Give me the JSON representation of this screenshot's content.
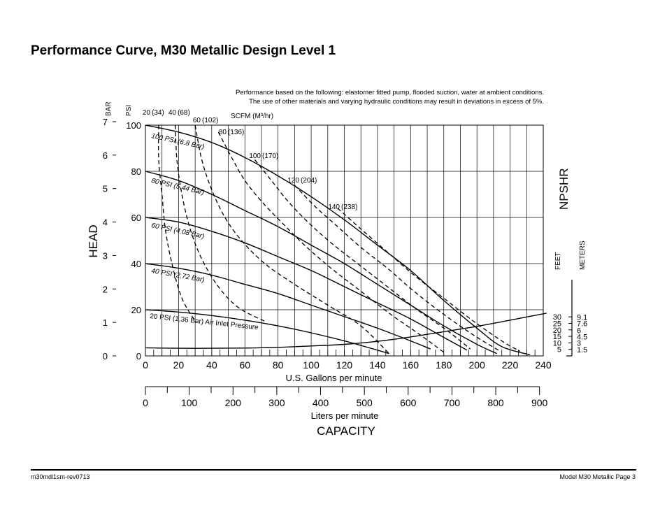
{
  "page": {
    "title": "Performance Curve, M30 Metallic Design Level 1",
    "note_line1": "Performance based on the following: elastomer fitted pump, flooded suction, water at ambient conditions.",
    "note_line2": "The use of other materials and varying hydraulic conditions may result in deviations in excess of 5%.",
    "footer_left": "m30mdl1sm-rev0713",
    "footer_right": "Model M30 Metallic Page 3"
  },
  "chart_data": {
    "type": "line",
    "x_label": "U.S. Gallons per minute",
    "x_ticks": [
      0,
      20,
      40,
      60,
      80,
      100,
      120,
      140,
      160,
      180,
      200,
      220,
      240
    ],
    "xlim": [
      0,
      240
    ],
    "x2_label": "Liters per minute",
    "x2_ticks": [
      0,
      100,
      200,
      300,
      400,
      500,
      600,
      700,
      800,
      900
    ],
    "capacity_label": "CAPACITY",
    "y_psi_label": "PSI",
    "y_psi_ticks": [
      0,
      20,
      40,
      60,
      80,
      100
    ],
    "ylim": [
      0,
      100
    ],
    "y_bar_label": "BAR",
    "y_bar_ticks": [
      0,
      1,
      2,
      3,
      4,
      5,
      6,
      7
    ],
    "head_label": "HEAD",
    "npshr_label": "NPSHR",
    "npshr_feet_label": "FEET",
    "npshr_meters_label": "METERS",
    "npshr_feet_ticks": [
      "5",
      "10",
      "15",
      "20",
      "25",
      "30"
    ],
    "npshr_meters_ticks": [
      "1.5",
      "3",
      "4.5",
      "6",
      "7.6",
      "9.1"
    ],
    "scfm_header": "SCFM (M³/hr)",
    "inlet_curves": [
      {
        "label": "100 PSI (6.8 Bar)",
        "points": [
          [
            0,
            100
          ],
          [
            20,
            97
          ],
          [
            40,
            92.5
          ],
          [
            60,
            86
          ],
          [
            80,
            78
          ],
          [
            100,
            69
          ],
          [
            120,
            59
          ],
          [
            140,
            48
          ],
          [
            160,
            37
          ],
          [
            180,
            24
          ],
          [
            200,
            12
          ],
          [
            215,
            4
          ],
          [
            232,
            0.5
          ]
        ]
      },
      {
        "label": "80 PSI (5.44 Bar)",
        "points": [
          [
            0,
            80
          ],
          [
            20,
            76
          ],
          [
            40,
            70
          ],
          [
            60,
            63
          ],
          [
            80,
            56
          ],
          [
            100,
            48
          ],
          [
            120,
            40
          ],
          [
            140,
            31
          ],
          [
            160,
            22
          ],
          [
            180,
            13
          ],
          [
            200,
            5
          ],
          [
            212,
            1
          ]
        ]
      },
      {
        "label": "60 PSI (4.08 Bar)",
        "points": [
          [
            0,
            60
          ],
          [
            20,
            58
          ],
          [
            40,
            54
          ],
          [
            60,
            49
          ],
          [
            80,
            43
          ],
          [
            100,
            37
          ],
          [
            120,
            30
          ],
          [
            140,
            23
          ],
          [
            160,
            16
          ],
          [
            180,
            8
          ],
          [
            194,
            2.5
          ]
        ]
      },
      {
        "label": "40 PSI (2.72 Bar)",
        "points": [
          [
            0,
            40
          ],
          [
            20,
            38
          ],
          [
            40,
            35
          ],
          [
            60,
            31
          ],
          [
            80,
            27
          ],
          [
            100,
            22
          ],
          [
            120,
            17
          ],
          [
            140,
            12
          ],
          [
            160,
            6.5
          ],
          [
            172,
            3
          ]
        ]
      },
      {
        "label": "20 PSI (1.36 Bar) Air Inlet Pressure",
        "points": [
          [
            0,
            20
          ],
          [
            20,
            19
          ],
          [
            40,
            17.5
          ],
          [
            60,
            15.5
          ],
          [
            80,
            13
          ],
          [
            100,
            10
          ],
          [
            120,
            6.5
          ],
          [
            135,
            3.5
          ],
          [
            147,
            1
          ]
        ]
      }
    ],
    "scfm_curves": [
      {
        "label": "20",
        "label_m3": "(34)",
        "points": [
          [
            8,
            100
          ],
          [
            8,
            85
          ],
          [
            10,
            70
          ],
          [
            12,
            55
          ],
          [
            16,
            40
          ],
          [
            22,
            25
          ],
          [
            30,
            15
          ]
        ]
      },
      {
        "label": "40",
        "label_m3": "(68)",
        "points": [
          [
            18,
            100
          ],
          [
            19,
            85
          ],
          [
            22,
            70
          ],
          [
            27,
            55
          ],
          [
            34,
            42
          ],
          [
            44,
            30
          ],
          [
            56,
            21
          ],
          [
            72,
            15
          ]
        ]
      },
      {
        "label": "60",
        "label_m3": "(102)",
        "points": [
          [
            30,
            100
          ],
          [
            34,
            85
          ],
          [
            40,
            72
          ],
          [
            48,
            60
          ],
          [
            58,
            50
          ],
          [
            72,
            40
          ],
          [
            90,
            31
          ],
          [
            110,
            22
          ],
          [
            130,
            13
          ],
          [
            147,
            1
          ]
        ]
      },
      {
        "label": "80",
        "label_m3": "(136)",
        "points": [
          [
            44,
            97
          ],
          [
            52,
            86
          ],
          [
            60,
            76
          ],
          [
            70,
            67
          ],
          [
            82,
            58
          ],
          [
            96,
            48
          ],
          [
            112,
            38
          ],
          [
            130,
            28
          ],
          [
            148,
            18
          ],
          [
            166,
            9
          ],
          [
            181,
            1
          ]
        ]
      },
      {
        "label": "100",
        "label_m3": "(170)",
        "points": [
          [
            66,
            85
          ],
          [
            76,
            76
          ],
          [
            86,
            67
          ],
          [
            98,
            58
          ],
          [
            112,
            49
          ],
          [
            128,
            40
          ],
          [
            146,
            30
          ],
          [
            164,
            20
          ],
          [
            182,
            11
          ],
          [
            196,
            3
          ]
        ]
      },
      {
        "label": "120",
        "label_m3": "(204)",
        "points": [
          [
            90,
            74
          ],
          [
            102,
            65
          ],
          [
            116,
            56
          ],
          [
            130,
            47
          ],
          [
            146,
            38
          ],
          [
            162,
            28
          ],
          [
            180,
            18
          ],
          [
            198,
            9
          ],
          [
            214,
            2
          ]
        ]
      },
      {
        "label": "140",
        "label_m3": "(238)",
        "points": [
          [
            116,
            64
          ],
          [
            130,
            55
          ],
          [
            146,
            45
          ],
          [
            162,
            35
          ],
          [
            180,
            25
          ],
          [
            198,
            15
          ],
          [
            216,
            6
          ],
          [
            226,
            2
          ]
        ]
      }
    ],
    "npshr_curve": {
      "label": "NPSHR",
      "points": [
        [
          0,
          3.5
        ],
        [
          20,
          3.3
        ],
        [
          40,
          3.3
        ],
        [
          60,
          3.4
        ],
        [
          80,
          3.7
        ],
        [
          100,
          4.3
        ],
        [
          120,
          5
        ],
        [
          140,
          6.3
        ],
        [
          160,
          8.2
        ],
        [
          180,
          10.5
        ],
        [
          200,
          12.8
        ],
        [
          220,
          15.5
        ],
        [
          242,
          18.5
        ]
      ]
    }
  }
}
